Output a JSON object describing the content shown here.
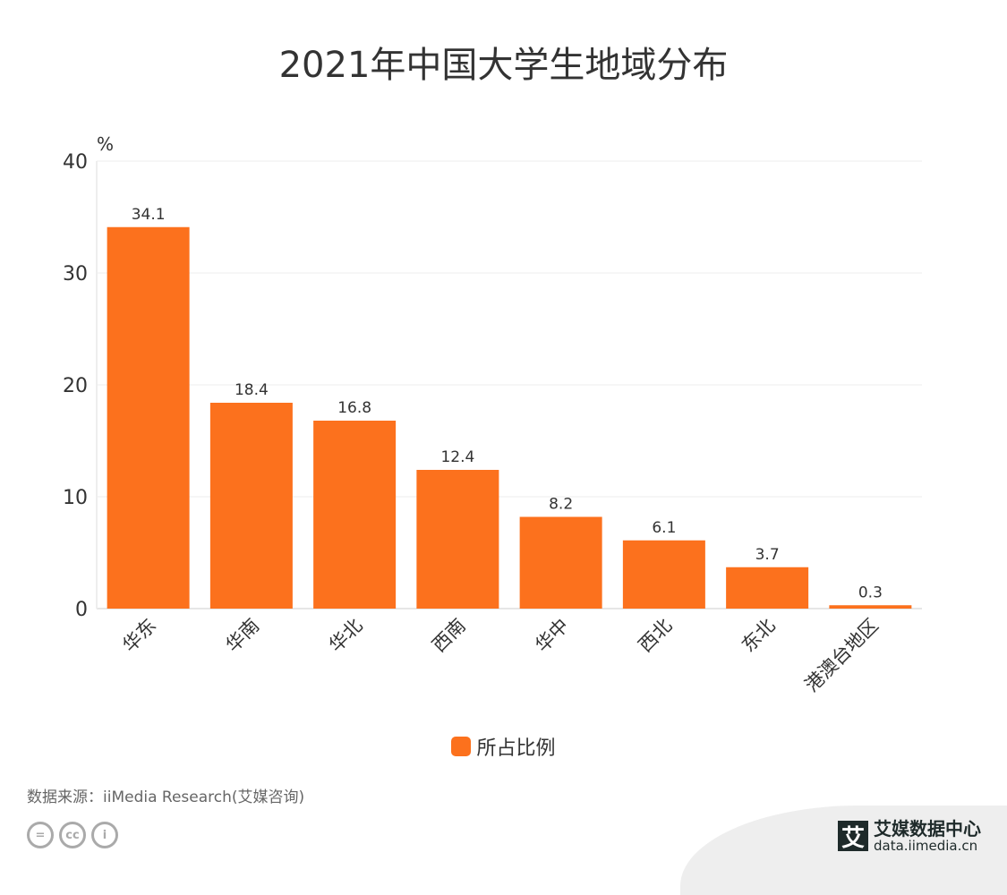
{
  "chart_data": {
    "type": "bar",
    "title": "2021年中国大学生地域分布",
    "ylabel": "%",
    "xlabel": "",
    "ylim": [
      0,
      40
    ],
    "yticks": [
      0,
      10,
      20,
      30,
      40
    ],
    "grid": true,
    "categories": [
      "华东",
      "华南",
      "华北",
      "西南",
      "华中",
      "西北",
      "东北",
      "港澳台地区"
    ],
    "series": [
      {
        "name": "所占比例",
        "values": [
          34.1,
          18.4,
          16.8,
          12.4,
          8.2,
          6.1,
          3.7,
          0.3
        ],
        "color": "#fc711d"
      }
    ],
    "legend_position": "bottom"
  },
  "footer": {
    "source": "数据来源：iiMedia Research(艾媒咨询)",
    "brand_logo": "艾",
    "brand_name": "艾媒数据中心",
    "brand_url": "data.iimedia.cn",
    "license_icons": [
      "nd-icon",
      "cc-icon",
      "by-icon"
    ]
  }
}
